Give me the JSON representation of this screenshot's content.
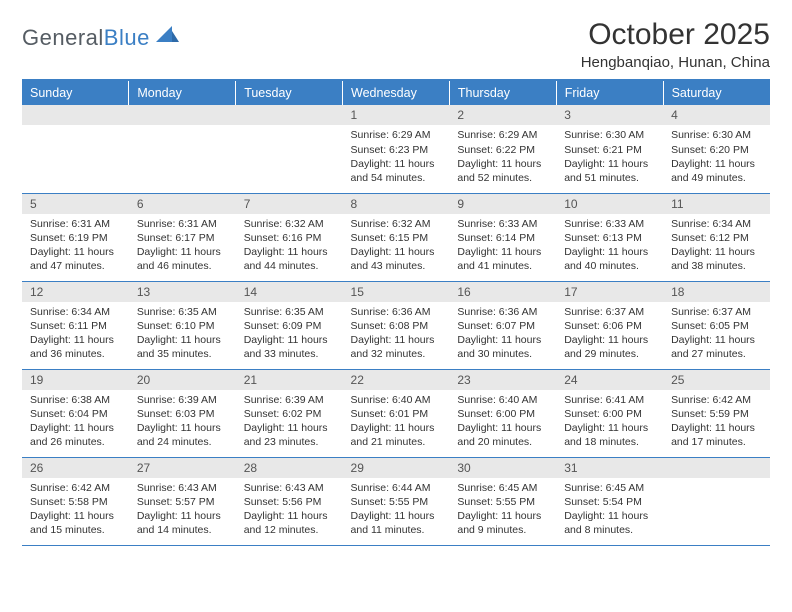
{
  "logo": {
    "part1": "General",
    "part2": "Blue"
  },
  "title": "October 2025",
  "subtitle": "Hengbanqiao, Hunan, China",
  "colors": {
    "header_bg": "#3b7fc4",
    "header_text": "#ffffff",
    "daynum_bg": "#e8e8e8",
    "border": "#3b7fc4",
    "body_text": "#333333",
    "logo_gray": "#555c63",
    "logo_blue": "#3b7fc4"
  },
  "weekdays": [
    "Sunday",
    "Monday",
    "Tuesday",
    "Wednesday",
    "Thursday",
    "Friday",
    "Saturday"
  ],
  "weeks": [
    [
      {
        "n": "",
        "sr": "",
        "ss": "",
        "dl": ""
      },
      {
        "n": "",
        "sr": "",
        "ss": "",
        "dl": ""
      },
      {
        "n": "",
        "sr": "",
        "ss": "",
        "dl": ""
      },
      {
        "n": "1",
        "sr": "Sunrise: 6:29 AM",
        "ss": "Sunset: 6:23 PM",
        "dl": "Daylight: 11 hours and 54 minutes."
      },
      {
        "n": "2",
        "sr": "Sunrise: 6:29 AM",
        "ss": "Sunset: 6:22 PM",
        "dl": "Daylight: 11 hours and 52 minutes."
      },
      {
        "n": "3",
        "sr": "Sunrise: 6:30 AM",
        "ss": "Sunset: 6:21 PM",
        "dl": "Daylight: 11 hours and 51 minutes."
      },
      {
        "n": "4",
        "sr": "Sunrise: 6:30 AM",
        "ss": "Sunset: 6:20 PM",
        "dl": "Daylight: 11 hours and 49 minutes."
      }
    ],
    [
      {
        "n": "5",
        "sr": "Sunrise: 6:31 AM",
        "ss": "Sunset: 6:19 PM",
        "dl": "Daylight: 11 hours and 47 minutes."
      },
      {
        "n": "6",
        "sr": "Sunrise: 6:31 AM",
        "ss": "Sunset: 6:17 PM",
        "dl": "Daylight: 11 hours and 46 minutes."
      },
      {
        "n": "7",
        "sr": "Sunrise: 6:32 AM",
        "ss": "Sunset: 6:16 PM",
        "dl": "Daylight: 11 hours and 44 minutes."
      },
      {
        "n": "8",
        "sr": "Sunrise: 6:32 AM",
        "ss": "Sunset: 6:15 PM",
        "dl": "Daylight: 11 hours and 43 minutes."
      },
      {
        "n": "9",
        "sr": "Sunrise: 6:33 AM",
        "ss": "Sunset: 6:14 PM",
        "dl": "Daylight: 11 hours and 41 minutes."
      },
      {
        "n": "10",
        "sr": "Sunrise: 6:33 AM",
        "ss": "Sunset: 6:13 PM",
        "dl": "Daylight: 11 hours and 40 minutes."
      },
      {
        "n": "11",
        "sr": "Sunrise: 6:34 AM",
        "ss": "Sunset: 6:12 PM",
        "dl": "Daylight: 11 hours and 38 minutes."
      }
    ],
    [
      {
        "n": "12",
        "sr": "Sunrise: 6:34 AM",
        "ss": "Sunset: 6:11 PM",
        "dl": "Daylight: 11 hours and 36 minutes."
      },
      {
        "n": "13",
        "sr": "Sunrise: 6:35 AM",
        "ss": "Sunset: 6:10 PM",
        "dl": "Daylight: 11 hours and 35 minutes."
      },
      {
        "n": "14",
        "sr": "Sunrise: 6:35 AM",
        "ss": "Sunset: 6:09 PM",
        "dl": "Daylight: 11 hours and 33 minutes."
      },
      {
        "n": "15",
        "sr": "Sunrise: 6:36 AM",
        "ss": "Sunset: 6:08 PM",
        "dl": "Daylight: 11 hours and 32 minutes."
      },
      {
        "n": "16",
        "sr": "Sunrise: 6:36 AM",
        "ss": "Sunset: 6:07 PM",
        "dl": "Daylight: 11 hours and 30 minutes."
      },
      {
        "n": "17",
        "sr": "Sunrise: 6:37 AM",
        "ss": "Sunset: 6:06 PM",
        "dl": "Daylight: 11 hours and 29 minutes."
      },
      {
        "n": "18",
        "sr": "Sunrise: 6:37 AM",
        "ss": "Sunset: 6:05 PM",
        "dl": "Daylight: 11 hours and 27 minutes."
      }
    ],
    [
      {
        "n": "19",
        "sr": "Sunrise: 6:38 AM",
        "ss": "Sunset: 6:04 PM",
        "dl": "Daylight: 11 hours and 26 minutes."
      },
      {
        "n": "20",
        "sr": "Sunrise: 6:39 AM",
        "ss": "Sunset: 6:03 PM",
        "dl": "Daylight: 11 hours and 24 minutes."
      },
      {
        "n": "21",
        "sr": "Sunrise: 6:39 AM",
        "ss": "Sunset: 6:02 PM",
        "dl": "Daylight: 11 hours and 23 minutes."
      },
      {
        "n": "22",
        "sr": "Sunrise: 6:40 AM",
        "ss": "Sunset: 6:01 PM",
        "dl": "Daylight: 11 hours and 21 minutes."
      },
      {
        "n": "23",
        "sr": "Sunrise: 6:40 AM",
        "ss": "Sunset: 6:00 PM",
        "dl": "Daylight: 11 hours and 20 minutes."
      },
      {
        "n": "24",
        "sr": "Sunrise: 6:41 AM",
        "ss": "Sunset: 6:00 PM",
        "dl": "Daylight: 11 hours and 18 minutes."
      },
      {
        "n": "25",
        "sr": "Sunrise: 6:42 AM",
        "ss": "Sunset: 5:59 PM",
        "dl": "Daylight: 11 hours and 17 minutes."
      }
    ],
    [
      {
        "n": "26",
        "sr": "Sunrise: 6:42 AM",
        "ss": "Sunset: 5:58 PM",
        "dl": "Daylight: 11 hours and 15 minutes."
      },
      {
        "n": "27",
        "sr": "Sunrise: 6:43 AM",
        "ss": "Sunset: 5:57 PM",
        "dl": "Daylight: 11 hours and 14 minutes."
      },
      {
        "n": "28",
        "sr": "Sunrise: 6:43 AM",
        "ss": "Sunset: 5:56 PM",
        "dl": "Daylight: 11 hours and 12 minutes."
      },
      {
        "n": "29",
        "sr": "Sunrise: 6:44 AM",
        "ss": "Sunset: 5:55 PM",
        "dl": "Daylight: 11 hours and 11 minutes."
      },
      {
        "n": "30",
        "sr": "Sunrise: 6:45 AM",
        "ss": "Sunset: 5:55 PM",
        "dl": "Daylight: 11 hours and 9 minutes."
      },
      {
        "n": "31",
        "sr": "Sunrise: 6:45 AM",
        "ss": "Sunset: 5:54 PM",
        "dl": "Daylight: 11 hours and 8 minutes."
      },
      {
        "n": "",
        "sr": "",
        "ss": "",
        "dl": ""
      }
    ]
  ]
}
